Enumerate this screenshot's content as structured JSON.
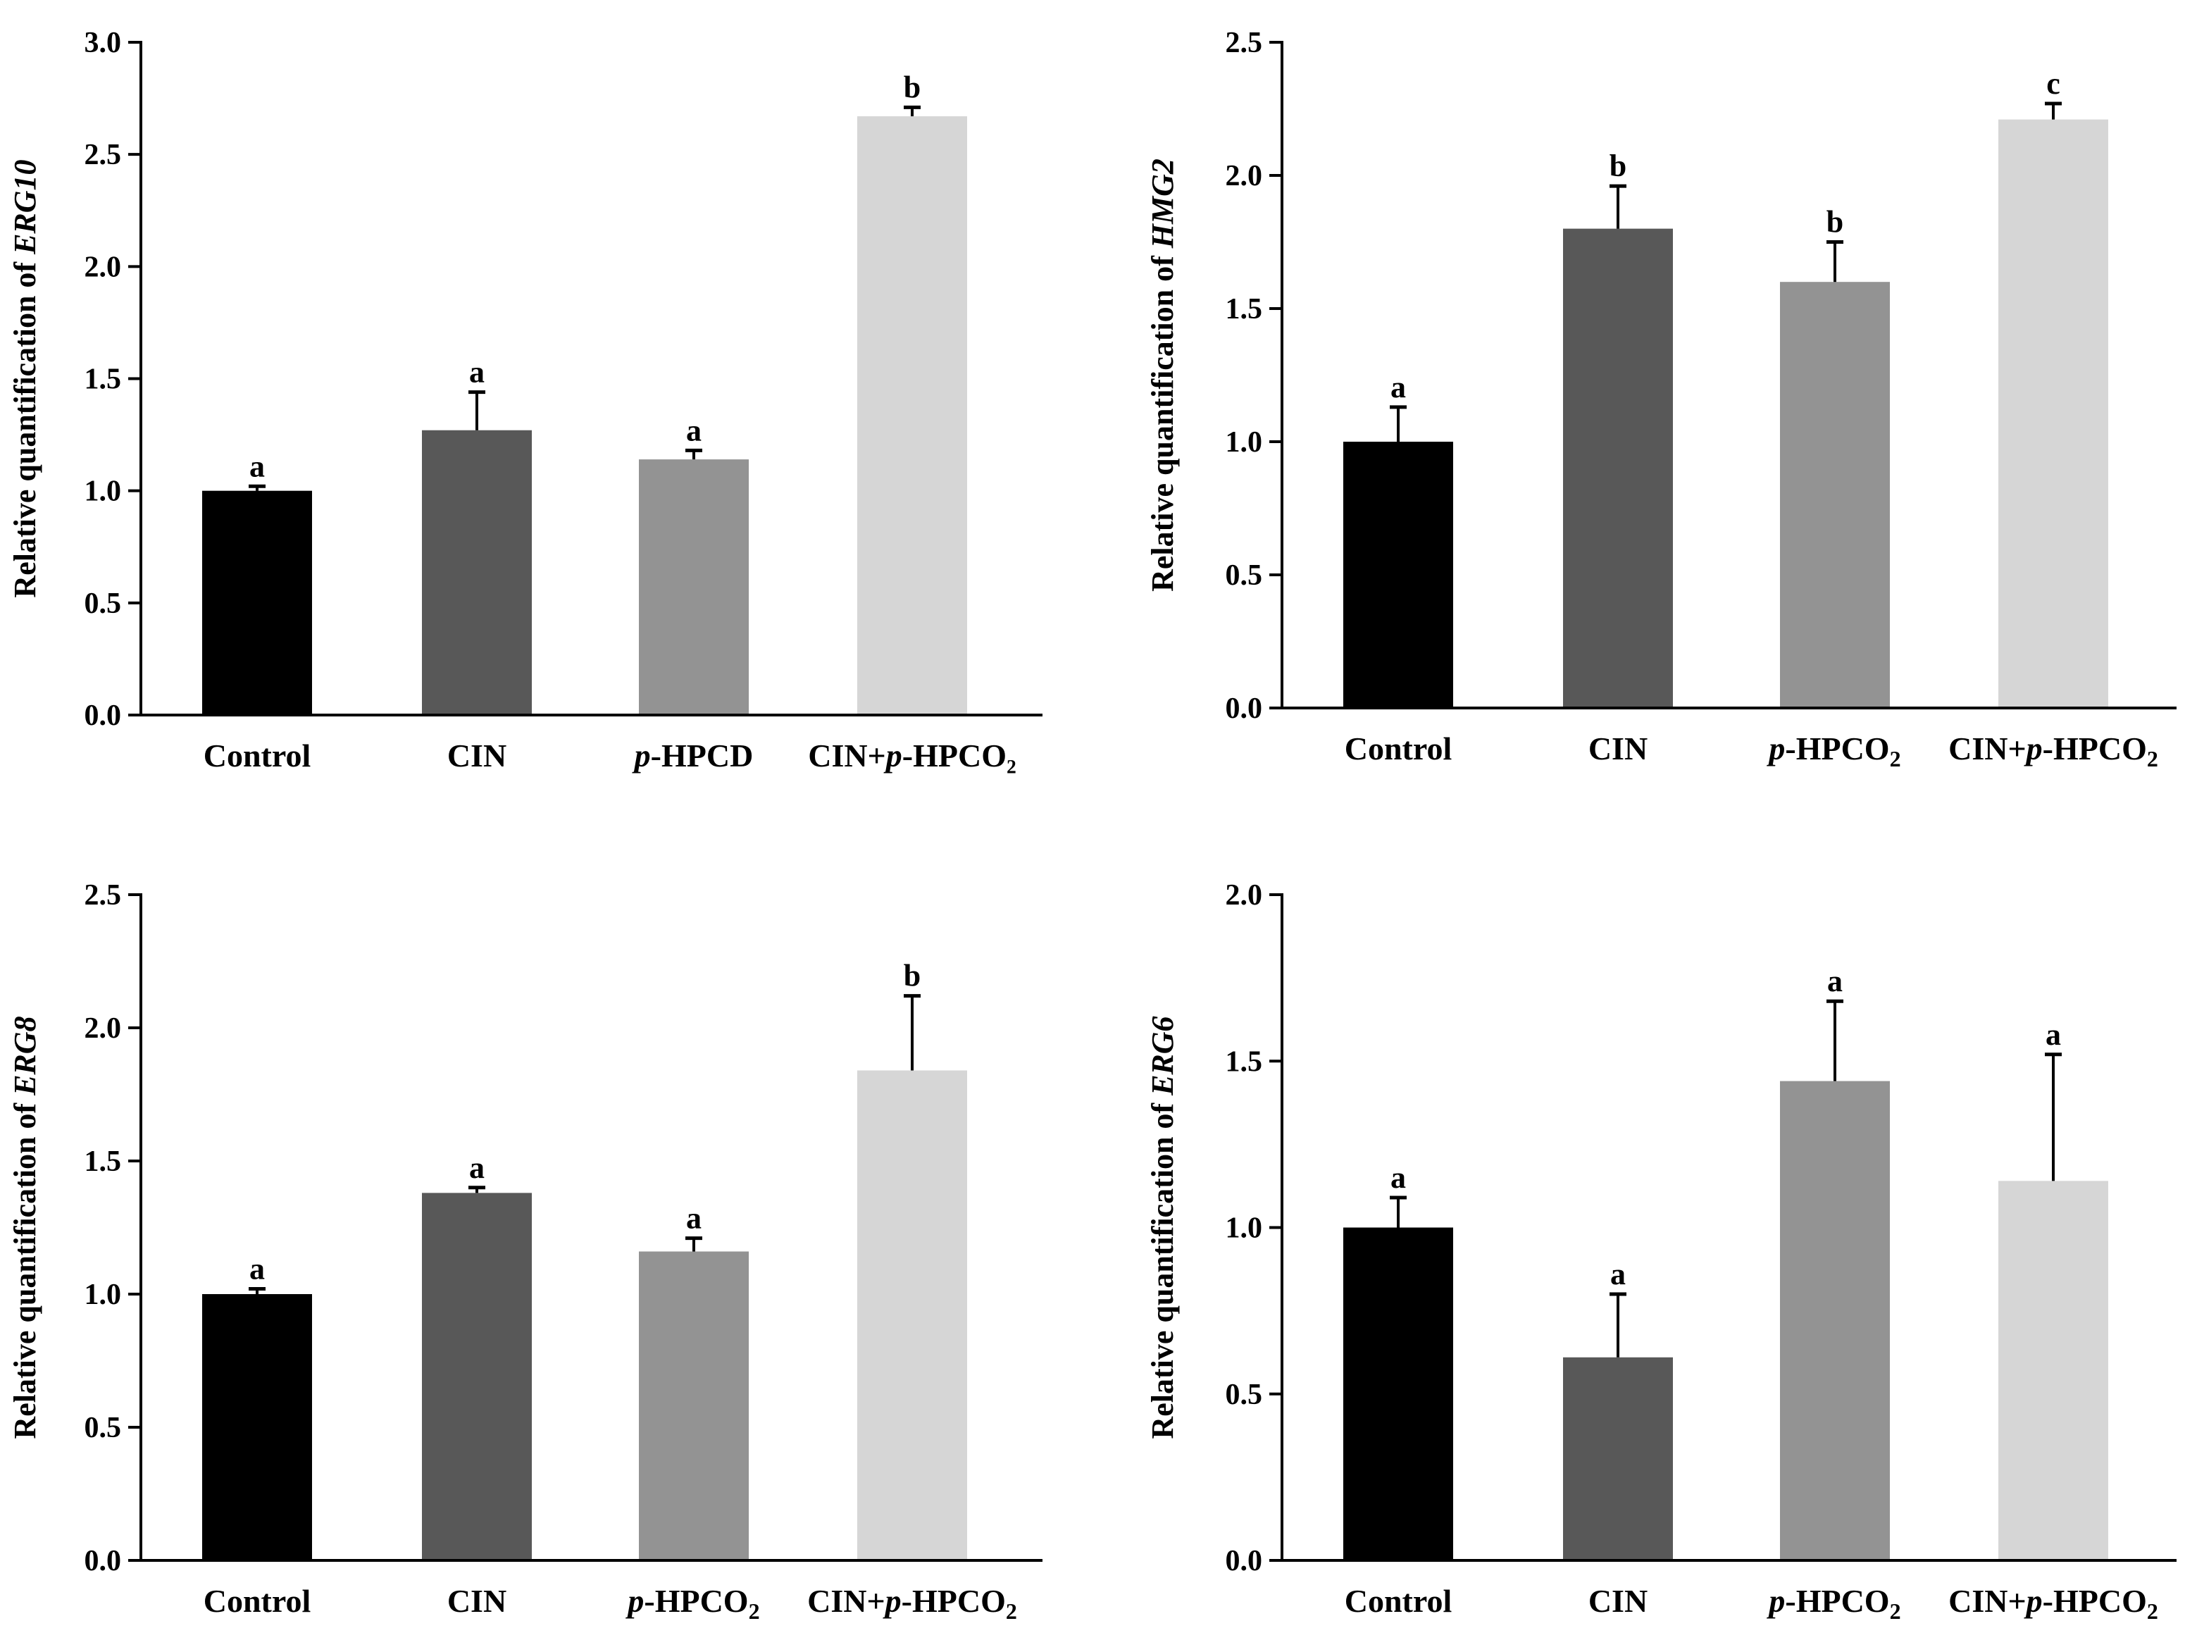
{
  "chart_data": [
    {
      "type": "bar",
      "ylabel_prefix": "Relative quantification of ",
      "ylabel_gene": "ERG10",
      "ylim": [
        0,
        3.0
      ],
      "yticks": [
        "0.0",
        "0.5",
        "1.0",
        "1.5",
        "2.0",
        "2.5",
        "3.0"
      ],
      "categories": [
        {
          "parts": [
            {
              "t": "Control"
            }
          ]
        },
        {
          "parts": [
            {
              "t": "CIN"
            }
          ]
        },
        {
          "parts": [
            {
              "t": "p",
              "i": true
            },
            {
              "t": "-HPCD"
            }
          ]
        },
        {
          "parts": [
            {
              "t": "CIN+"
            },
            {
              "t": "p",
              "i": true
            },
            {
              "t": "-HPCO₂"
            }
          ]
        }
      ],
      "values": [
        1.0,
        1.27,
        1.14,
        2.67
      ],
      "errors": [
        0.02,
        0.17,
        0.04,
        0.04
      ],
      "letters": [
        "a",
        "a",
        "a",
        "b"
      ],
      "colors": [
        "#000000",
        "#585858",
        "#939393",
        "#d6d6d6"
      ]
    },
    {
      "type": "bar",
      "ylabel_prefix": "Relative quantification of ",
      "ylabel_gene": "HMG2",
      "ylim": [
        0,
        2.5
      ],
      "yticks": [
        "0.0",
        "0.5",
        "1.0",
        "1.5",
        "2.0",
        "2.5"
      ],
      "categories": [
        {
          "parts": [
            {
              "t": "Control"
            }
          ]
        },
        {
          "parts": [
            {
              "t": "CIN"
            }
          ]
        },
        {
          "parts": [
            {
              "t": "p",
              "i": true
            },
            {
              "t": "-HPCO"
            },
            {
              "t": "2",
              "sub": true
            }
          ]
        },
        {
          "parts": [
            {
              "t": "CIN+"
            },
            {
              "t": "p",
              "i": true
            },
            {
              "t": "-HPCO"
            },
            {
              "t": "2",
              "sub": true
            }
          ]
        }
      ],
      "values": [
        1.0,
        1.8,
        1.6,
        2.21
      ],
      "errors": [
        0.13,
        0.16,
        0.15,
        0.06
      ],
      "letters": [
        "a",
        "b",
        "b",
        "c"
      ],
      "colors": [
        "#000000",
        "#585858",
        "#939393",
        "#d6d6d6"
      ]
    },
    {
      "type": "bar",
      "ylabel_prefix": "Relative quantification of ",
      "ylabel_gene": "ERG8",
      "ylim": [
        0,
        2.5
      ],
      "yticks": [
        "0.0",
        "0.5",
        "1.0",
        "1.5",
        "2.0",
        "2.5"
      ],
      "categories": [
        {
          "parts": [
            {
              "t": "Control"
            }
          ]
        },
        {
          "parts": [
            {
              "t": "CIN"
            }
          ]
        },
        {
          "parts": [
            {
              "t": "p",
              "i": true
            },
            {
              "t": "-HPCO"
            },
            {
              "t": "2",
              "sub": true
            }
          ]
        },
        {
          "parts": [
            {
              "t": "CIN+"
            },
            {
              "t": "p",
              "i": true
            },
            {
              "t": "-HPCO"
            },
            {
              "t": "2",
              "sub": true
            }
          ]
        }
      ],
      "values": [
        1.0,
        1.38,
        1.16,
        1.84
      ],
      "errors": [
        0.02,
        0.02,
        0.05,
        0.28
      ],
      "letters": [
        "a",
        "a",
        "a",
        "b"
      ],
      "colors": [
        "#000000",
        "#585858",
        "#939393",
        "#d6d6d6"
      ]
    },
    {
      "type": "bar",
      "ylabel_prefix": "Relative quantification of ",
      "ylabel_gene": "ERG6",
      "ylim": [
        0,
        2.0
      ],
      "yticks": [
        "0.0",
        "0.5",
        "1.0",
        "1.5",
        "2.0"
      ],
      "categories": [
        {
          "parts": [
            {
              "t": "Control"
            }
          ]
        },
        {
          "parts": [
            {
              "t": "CIN"
            }
          ]
        },
        {
          "parts": [
            {
              "t": "p",
              "i": true
            },
            {
              "t": "-HPCO"
            },
            {
              "t": "2",
              "sub": true
            }
          ]
        },
        {
          "parts": [
            {
              "t": "CIN+"
            },
            {
              "t": "p",
              "i": true
            },
            {
              "t": "-HPCO"
            },
            {
              "t": "2",
              "sub": true
            }
          ]
        }
      ],
      "values": [
        1.0,
        0.61,
        1.44,
        1.14
      ],
      "errors": [
        0.09,
        0.19,
        0.24,
        0.38
      ],
      "letters": [
        "a",
        "a",
        "a",
        "a"
      ],
      "colors": [
        "#000000",
        "#585858",
        "#939393",
        "#d6d6d6"
      ]
    }
  ]
}
